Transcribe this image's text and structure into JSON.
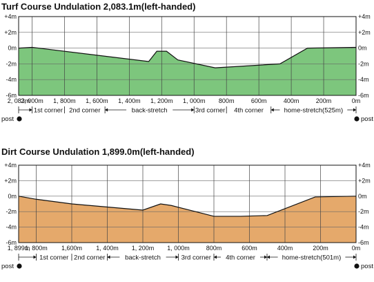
{
  "chart_data": [
    {
      "type": "area",
      "title": "Turf Course Undulation 2,083.1m(left-handed)",
      "fill_color": "#7dc67d",
      "ylim": [
        -6,
        4
      ],
      "y_ticks": [
        4,
        2,
        0,
        -2,
        -4,
        -6
      ],
      "y_tick_labels": [
        "+4m",
        "+2m",
        "0m",
        "-2m",
        "-4m",
        "-6m"
      ],
      "x_range": [
        2083,
        0
      ],
      "x_tick_values": [
        2083,
        2000,
        1800,
        1600,
        1400,
        1200,
        1000,
        800,
        600,
        400,
        200,
        0
      ],
      "x_tick_labels": [
        "2, 083m",
        "2, 000m",
        "1, 800m",
        "1, 600m",
        "1, 400m",
        "1, 200m",
        "1, 000m",
        "800m",
        "600m",
        "400m",
        "200m",
        "0m"
      ],
      "grid_x": [
        2000,
        1800,
        1600,
        1400,
        1200,
        1000,
        800,
        600,
        400,
        200
      ],
      "profile": {
        "x": [
          2083,
          2000,
          1280,
          1230,
          1170,
          1100,
          870,
          470,
          300,
          0
        ],
        "y": [
          0,
          0.1,
          -1.7,
          -0.4,
          -0.4,
          -1.5,
          -2.5,
          -2.0,
          0,
          0.1
        ]
      },
      "segments": [
        {
          "label": "1st corner",
          "start": 2000,
          "end": 1800
        },
        {
          "label": "2nd corner",
          "start": 1800,
          "end": 1550
        },
        {
          "label": "back-stretch",
          "start": 1550,
          "end": 1000
        },
        {
          "label": "3rd corner",
          "start": 1000,
          "end": 800
        },
        {
          "label": "4th corner",
          "start": 800,
          "end": 525
        },
        {
          "label": "home-stretch(525m)",
          "start": 525,
          "end": 0
        }
      ],
      "start_label": "post",
      "end_label": "post"
    },
    {
      "type": "area",
      "title": "Dirt Course Undulation 1,899.0m(left-handed)",
      "fill_color": "#e5a96b",
      "ylim": [
        -6,
        4
      ],
      "y_ticks": [
        4,
        2,
        0,
        -2,
        -4,
        -6
      ],
      "y_tick_labels": [
        "+4m",
        "+2m",
        "0m",
        "-2m",
        "-4m",
        "-6m"
      ],
      "x_range": [
        1899,
        0
      ],
      "x_tick_values": [
        1899,
        1800,
        1600,
        1400,
        1200,
        1000,
        800,
        600,
        400,
        200,
        0
      ],
      "x_tick_labels": [
        "1, 899m",
        "1, 800m",
        "1,600m",
        "1, 400m",
        "1, 200m",
        "1, 000m",
        "800m",
        "600m",
        "400m",
        "200m",
        "0m"
      ],
      "grid_x": [
        1800,
        1600,
        1400,
        1200,
        1000,
        800,
        600,
        400,
        200
      ],
      "profile": {
        "x": [
          1899,
          1800,
          1600,
          1400,
          1200,
          1100,
          1040,
          800,
          650,
          500,
          230,
          0
        ],
        "y": [
          0,
          -0.4,
          -1,
          -1.4,
          -1.8,
          -1.0,
          -1.2,
          -2.6,
          -2.6,
          -2.5,
          -0.1,
          0
        ]
      },
      "segments": [
        {
          "label": "1st corner",
          "start": 1800,
          "end": 1600
        },
        {
          "label": "2nd corner",
          "start": 1600,
          "end": 1400
        },
        {
          "label": "back-stretch",
          "start": 1400,
          "end": 1000
        },
        {
          "label": "3rd corner",
          "start": 1000,
          "end": 800
        },
        {
          "label": "4th corner",
          "start": 800,
          "end": 501
        },
        {
          "label": "home-stretch(501m)",
          "start": 501,
          "end": 0
        }
      ],
      "start_label": "post",
      "end_label": "post"
    }
  ]
}
